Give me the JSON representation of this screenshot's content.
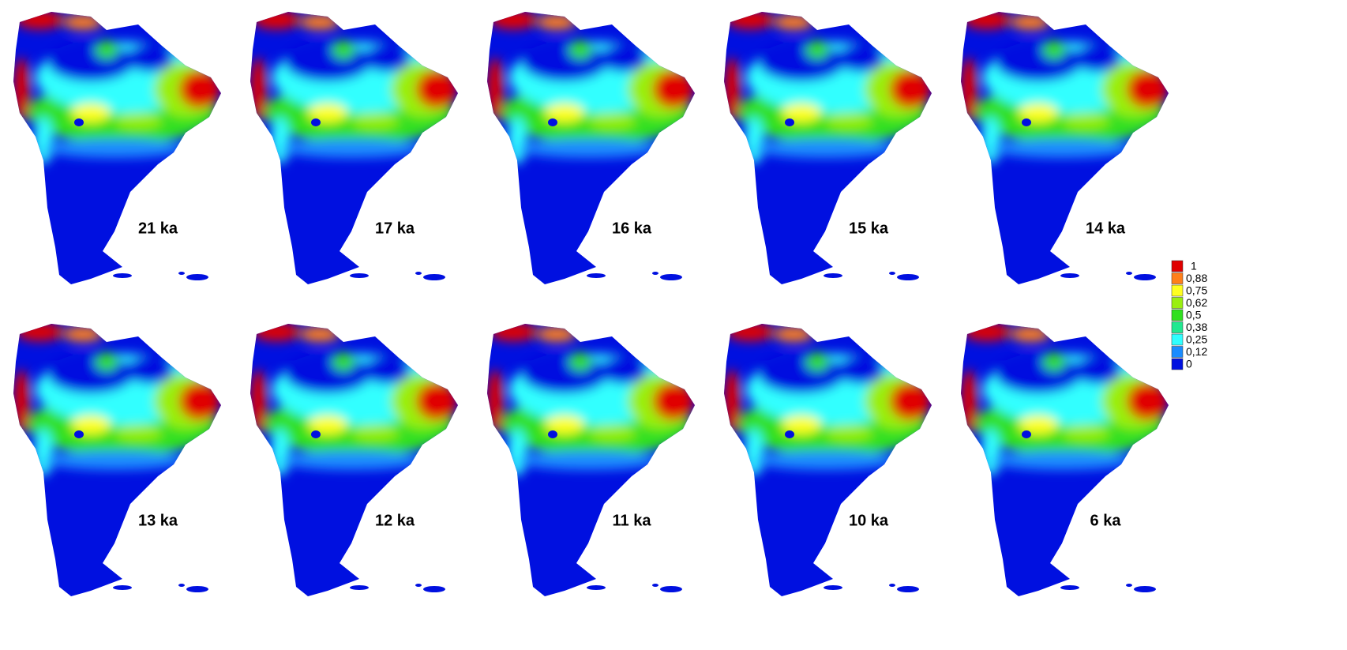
{
  "panels": [
    {
      "label": "21 ka"
    },
    {
      "label": "17 ka"
    },
    {
      "label": "16 ka"
    },
    {
      "label": "15 ka"
    },
    {
      "label": "14 ka"
    },
    {
      "label": "13 ka"
    },
    {
      "label": "12 ka"
    },
    {
      "label": "11 ka"
    },
    {
      "label": "10 ka"
    },
    {
      "label": "6 ka"
    }
  ],
  "legend": {
    "items": [
      {
        "label": "1",
        "color": "#e00000"
      },
      {
        "label": "0,88",
        "color": "#ff7f1a"
      },
      {
        "label": "0,75",
        "color": "#ffff20"
      },
      {
        "label": "0,62",
        "color": "#9aef10"
      },
      {
        "label": "0,5",
        "color": "#30e020"
      },
      {
        "label": "0,38",
        "color": "#20e890"
      },
      {
        "label": "0,25",
        "color": "#30ffff"
      },
      {
        "label": "0,12",
        "color": "#1a8cff"
      },
      {
        "label": "0",
        "color": "#0010e0"
      }
    ]
  }
}
